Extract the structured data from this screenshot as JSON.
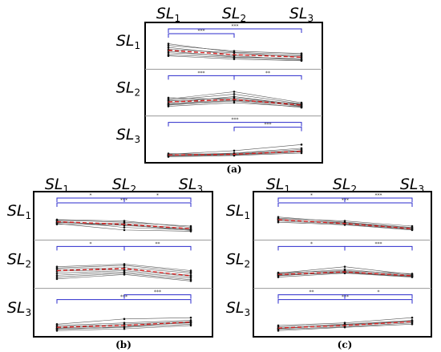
{
  "figure": {
    "captions": [
      "(a)",
      "(b)",
      "(c)"
    ]
  },
  "colors": {
    "bracket": "#2b2bcc",
    "mean": "#d62020",
    "subject_line": "#555555",
    "frame": "#000000",
    "separator": "#9a9a9a"
  },
  "chart_data": [
    {
      "panel": "(a)",
      "type": "line",
      "column_labels": [
        {
          "base": "SL",
          "sub": "1"
        },
        {
          "base": "SL",
          "sub": "2"
        },
        {
          "base": "SL",
          "sub": "3"
        }
      ],
      "row_labels": [
        {
          "base": "SL",
          "sub": "1"
        },
        {
          "base": "SL",
          "sub": "2"
        },
        {
          "base": "SL",
          "sub": "3"
        }
      ],
      "rows": [
        {
          "mean": [
            0.58,
            0.4,
            0.3
          ],
          "subjects": [
            [
              0.85,
              0.5,
              0.4
            ],
            [
              0.78,
              0.55,
              0.45
            ],
            [
              0.7,
              0.4,
              0.35
            ],
            [
              0.62,
              0.48,
              0.3
            ],
            [
              0.55,
              0.3,
              0.25
            ],
            [
              0.48,
              0.35,
              0.2
            ],
            [
              0.4,
              0.28,
              0.18
            ],
            [
              0.35,
              0.22,
              0.15
            ]
          ],
          "brackets": [
            {
              "from": 0,
              "to": 1,
              "label": "***",
              "level": 2
            },
            {
              "from": 0,
              "to": 2,
              "label": "***",
              "level": 1
            }
          ]
        },
        {
          "mean": [
            0.38,
            0.48,
            0.25
          ],
          "subjects": [
            [
              0.5,
              0.8,
              0.35
            ],
            [
              0.45,
              0.7,
              0.3
            ],
            [
              0.35,
              0.6,
              0.25
            ],
            [
              0.3,
              0.5,
              0.2
            ],
            [
              0.25,
              0.42,
              0.15
            ],
            [
              0.2,
              0.35,
              0.18
            ],
            [
              0.42,
              0.55,
              0.28
            ],
            [
              0.28,
              0.45,
              0.22
            ],
            [
              0.55,
              0.48,
              0.3
            ]
          ],
          "brackets": [
            {
              "from": 0,
              "to": 1,
              "label": "***",
              "level": 1
            },
            {
              "from": 1,
              "to": 2,
              "label": "**",
              "level": 1
            }
          ]
        },
        {
          "mean": [
            0.12,
            0.15,
            0.28
          ],
          "subjects": [
            [
              0.15,
              0.3,
              0.55
            ],
            [
              0.12,
              0.2,
              0.4
            ],
            [
              0.1,
              0.15,
              0.3
            ],
            [
              0.08,
              0.12,
              0.25
            ],
            [
              0.05,
              0.1,
              0.2
            ],
            [
              0.1,
              0.18,
              0.35
            ],
            [
              0.18,
              0.14,
              0.28
            ]
          ],
          "brackets": [
            {
              "from": 0,
              "to": 2,
              "label": "***",
              "level": 1
            },
            {
              "from": 1,
              "to": 2,
              "label": "***",
              "level": 2
            }
          ]
        }
      ]
    },
    {
      "panel": "(b)",
      "type": "line",
      "column_labels": [
        {
          "base": "SL",
          "sub": "1"
        },
        {
          "base": "SL",
          "sub": "2"
        },
        {
          "base": "SL",
          "sub": "3"
        }
      ],
      "row_labels": [
        {
          "base": "SL",
          "sub": "1"
        },
        {
          "base": "SL",
          "sub": "2"
        },
        {
          "base": "SL",
          "sub": "3"
        }
      ],
      "rows": [
        {
          "mean": [
            0.52,
            0.42,
            0.25
          ],
          "subjects": [
            [
              0.6,
              0.55,
              0.3
            ],
            [
              0.55,
              0.3,
              0.2
            ],
            [
              0.48,
              0.45,
              0.25
            ],
            [
              0.5,
              0.38,
              0.22
            ],
            [
              0.45,
              0.2,
              0.15
            ],
            [
              0.58,
              0.5,
              0.35
            ],
            [
              0.42,
              0.4,
              0.18
            ]
          ],
          "brackets": [
            {
              "from": 0,
              "to": 1,
              "label": "*",
              "level": 1
            },
            {
              "from": 0,
              "to": 2,
              "label": "***",
              "level": 2
            },
            {
              "from": 1,
              "to": 2,
              "label": "*",
              "level": 1
            }
          ]
        },
        {
          "mean": [
            0.5,
            0.58,
            0.3
          ],
          "subjects": [
            [
              0.65,
              0.75,
              0.5
            ],
            [
              0.6,
              0.7,
              0.45
            ],
            [
              0.55,
              0.62,
              0.4
            ],
            [
              0.48,
              0.55,
              0.32
            ],
            [
              0.4,
              0.5,
              0.28
            ],
            [
              0.32,
              0.45,
              0.22
            ],
            [
              0.25,
              0.4,
              0.15
            ],
            [
              0.18,
              0.35,
              0.1
            ]
          ],
          "brackets": [
            {
              "from": 0,
              "to": 1,
              "label": "*",
              "level": 1
            },
            {
              "from": 1,
              "to": 2,
              "label": "**",
              "level": 1
            }
          ]
        },
        {
          "mean": [
            0.18,
            0.25,
            0.38
          ],
          "subjects": [
            [
              0.3,
              0.5,
              0.55
            ],
            [
              0.25,
              0.35,
              0.45
            ],
            [
              0.2,
              0.3,
              0.4
            ],
            [
              0.15,
              0.25,
              0.35
            ],
            [
              0.1,
              0.18,
              0.3
            ],
            [
              0.05,
              0.12,
              0.25
            ],
            [
              0.12,
              0.2,
              0.38
            ]
          ],
          "brackets": [
            {
              "from": 0,
              "to": 2,
              "label": "***",
              "level": 2
            },
            {
              "from": 1,
              "to": 2,
              "label": "***",
              "level": 1
            }
          ]
        }
      ]
    },
    {
      "panel": "(c)",
      "type": "line",
      "column_labels": [
        {
          "base": "SL",
          "sub": "1"
        },
        {
          "base": "SL",
          "sub": "2"
        },
        {
          "base": "SL",
          "sub": "3"
        }
      ],
      "row_labels": [
        {
          "base": "SL",
          "sub": "1"
        },
        {
          "base": "SL",
          "sub": "2"
        },
        {
          "base": "SL",
          "sub": "3"
        }
      ],
      "rows": [
        {
          "mean": [
            0.6,
            0.45,
            0.25
          ],
          "subjects": [
            [
              0.7,
              0.5,
              0.3
            ],
            [
              0.65,
              0.55,
              0.35
            ],
            [
              0.6,
              0.48,
              0.28
            ],
            [
              0.55,
              0.42,
              0.22
            ],
            [
              0.5,
              0.4,
              0.2
            ],
            [
              0.62,
              0.45,
              0.25
            ]
          ],
          "brackets": [
            {
              "from": 0,
              "to": 1,
              "label": "*",
              "level": 1
            },
            {
              "from": 0,
              "to": 2,
              "label": "***",
              "level": 2
            },
            {
              "from": 1,
              "to": 2,
              "label": "***",
              "level": 1
            }
          ]
        },
        {
          "mean": [
            0.35,
            0.45,
            0.3
          ],
          "subjects": [
            [
              0.4,
              0.65,
              0.35
            ],
            [
              0.38,
              0.55,
              0.32
            ],
            [
              0.35,
              0.48,
              0.3
            ],
            [
              0.3,
              0.45,
              0.28
            ],
            [
              0.25,
              0.4,
              0.25
            ],
            [
              0.42,
              0.5,
              0.38
            ],
            [
              0.32,
              0.42,
              0.27
            ]
          ],
          "brackets": [
            {
              "from": 0,
              "to": 1,
              "label": "*",
              "level": 1
            },
            {
              "from": 1,
              "to": 2,
              "label": "***",
              "level": 1
            }
          ]
        },
        {
          "mean": [
            0.15,
            0.25,
            0.4
          ],
          "subjects": [
            [
              0.25,
              0.35,
              0.55
            ],
            [
              0.2,
              0.3,
              0.45
            ],
            [
              0.15,
              0.25,
              0.4
            ],
            [
              0.1,
              0.2,
              0.35
            ],
            [
              0.05,
              0.18,
              0.3
            ],
            [
              0.12,
              0.28,
              0.42
            ]
          ],
          "brackets": [
            {
              "from": 0,
              "to": 1,
              "label": "**",
              "level": 1
            },
            {
              "from": 0,
              "to": 2,
              "label": "***",
              "level": 2
            },
            {
              "from": 1,
              "to": 2,
              "label": "*",
              "level": 1
            }
          ]
        }
      ]
    }
  ]
}
